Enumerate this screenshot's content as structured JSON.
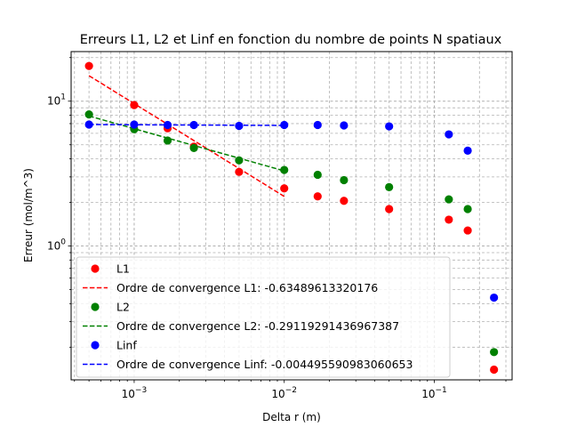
{
  "chart_data": {
    "type": "scatter",
    "title": "Erreurs L1, L2 et Linf en fonction du nombre de points N spatiaux",
    "xlabel": "Delta r (m)",
    "ylabel": "Erreur (mol/m^3)",
    "xscale": "log",
    "yscale": "log",
    "xlim": [
      0.00038,
      0.33
    ],
    "ylim": [
      0.119,
      22
    ],
    "grid": "major and minor",
    "legend_position": "lower-left",
    "x_tick_labels": [
      {
        "base": "10",
        "exp": "−3",
        "value": 0.001
      },
      {
        "base": "10",
        "exp": "−2",
        "value": 0.01
      },
      {
        "base": "10",
        "exp": "−1",
        "value": 0.1
      }
    ],
    "y_tick_labels": [
      {
        "base": "10",
        "exp": "0",
        "value": 1
      },
      {
        "base": "10",
        "exp": "1",
        "value": 10
      }
    ],
    "series": [
      {
        "name": "L1",
        "kind": "points",
        "color": "#ff0000",
        "x": [
          0.0005,
          0.001,
          0.00167,
          0.0025,
          0.005,
          0.01,
          0.0167,
          0.025,
          0.05,
          0.125,
          0.167,
          0.25
        ],
        "y": [
          17.5,
          9.4,
          6.5,
          4.85,
          3.25,
          2.5,
          2.2,
          2.05,
          1.8,
          1.52,
          1.28,
          0.14
        ]
      },
      {
        "name": "Ordre de convergence L1: -0.63489613320176",
        "kind": "fit",
        "color": "#ff0000",
        "x": [
          0.0005,
          0.01
        ],
        "y": [
          15.0,
          2.2
        ]
      },
      {
        "name": "L2",
        "kind": "points",
        "color": "#008000",
        "x": [
          0.0005,
          0.001,
          0.00167,
          0.0025,
          0.005,
          0.01,
          0.0167,
          0.025,
          0.05,
          0.125,
          0.167,
          0.25
        ],
        "y": [
          8.1,
          6.4,
          5.35,
          4.75,
          3.9,
          3.35,
          3.1,
          2.85,
          2.55,
          2.1,
          1.8,
          0.185
        ]
      },
      {
        "name": "Ordre de convergence L2: -0.29119291436967387",
        "kind": "fit",
        "color": "#008000",
        "x": [
          0.0005,
          0.01
        ],
        "y": [
          7.9,
          3.3
        ]
      },
      {
        "name": "Linf",
        "kind": "points",
        "color": "#0000ff",
        "x": [
          0.0005,
          0.001,
          0.00167,
          0.0025,
          0.005,
          0.01,
          0.0167,
          0.025,
          0.05,
          0.125,
          0.167,
          0.25
        ],
        "y": [
          6.9,
          6.9,
          6.85,
          6.85,
          6.75,
          6.85,
          6.85,
          6.8,
          6.7,
          5.9,
          4.55,
          0.44
        ]
      },
      {
        "name": "Ordre de convergence Linf: -0.004495590983060653",
        "kind": "fit",
        "color": "#0000ff",
        "x": [
          0.0005,
          0.01
        ],
        "y": [
          6.9,
          6.8
        ]
      }
    ]
  }
}
